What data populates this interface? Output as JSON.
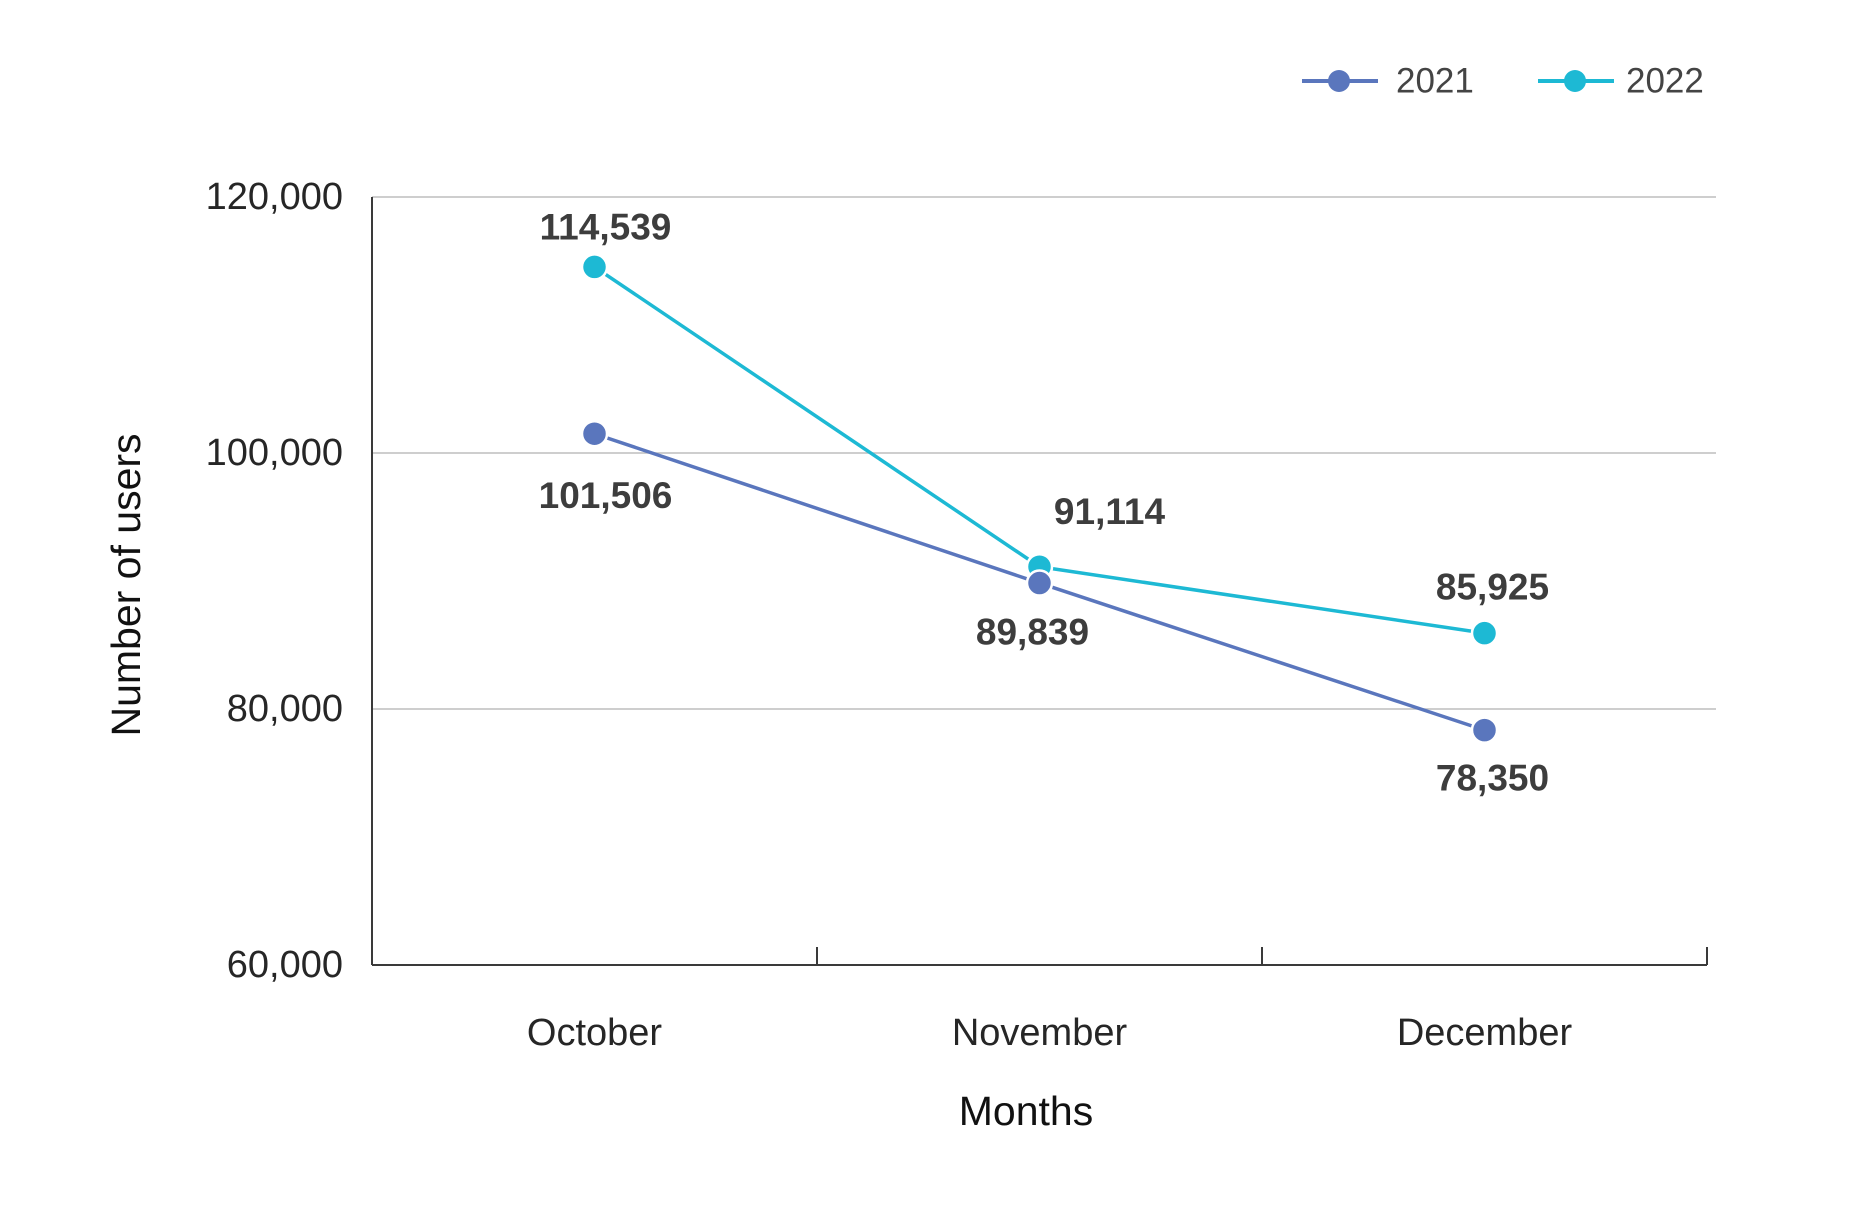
{
  "chart_data": {
    "type": "line",
    "categories": [
      "October",
      "November",
      "December"
    ],
    "series": [
      {
        "name": "2021",
        "color": "#5A76BD",
        "values": [
          101506,
          89839,
          78350
        ],
        "data_labels": [
          "101,506",
          "89,839",
          "78,350"
        ]
      },
      {
        "name": "2022",
        "color": "#1DB9D4",
        "values": [
          114539,
          91114,
          85925
        ],
        "data_labels": [
          "114,539",
          "91,114",
          "85,925"
        ]
      }
    ],
    "xlabel": "Months",
    "ylabel": "Number of users",
    "ylim": [
      60000,
      120000
    ],
    "yticks": [
      60000,
      80000,
      100000,
      120000
    ],
    "ytick_labels": [
      "60,000",
      "80,000",
      "100,000",
      "120,000"
    ],
    "grid": true,
    "legend_position": "top-right"
  }
}
